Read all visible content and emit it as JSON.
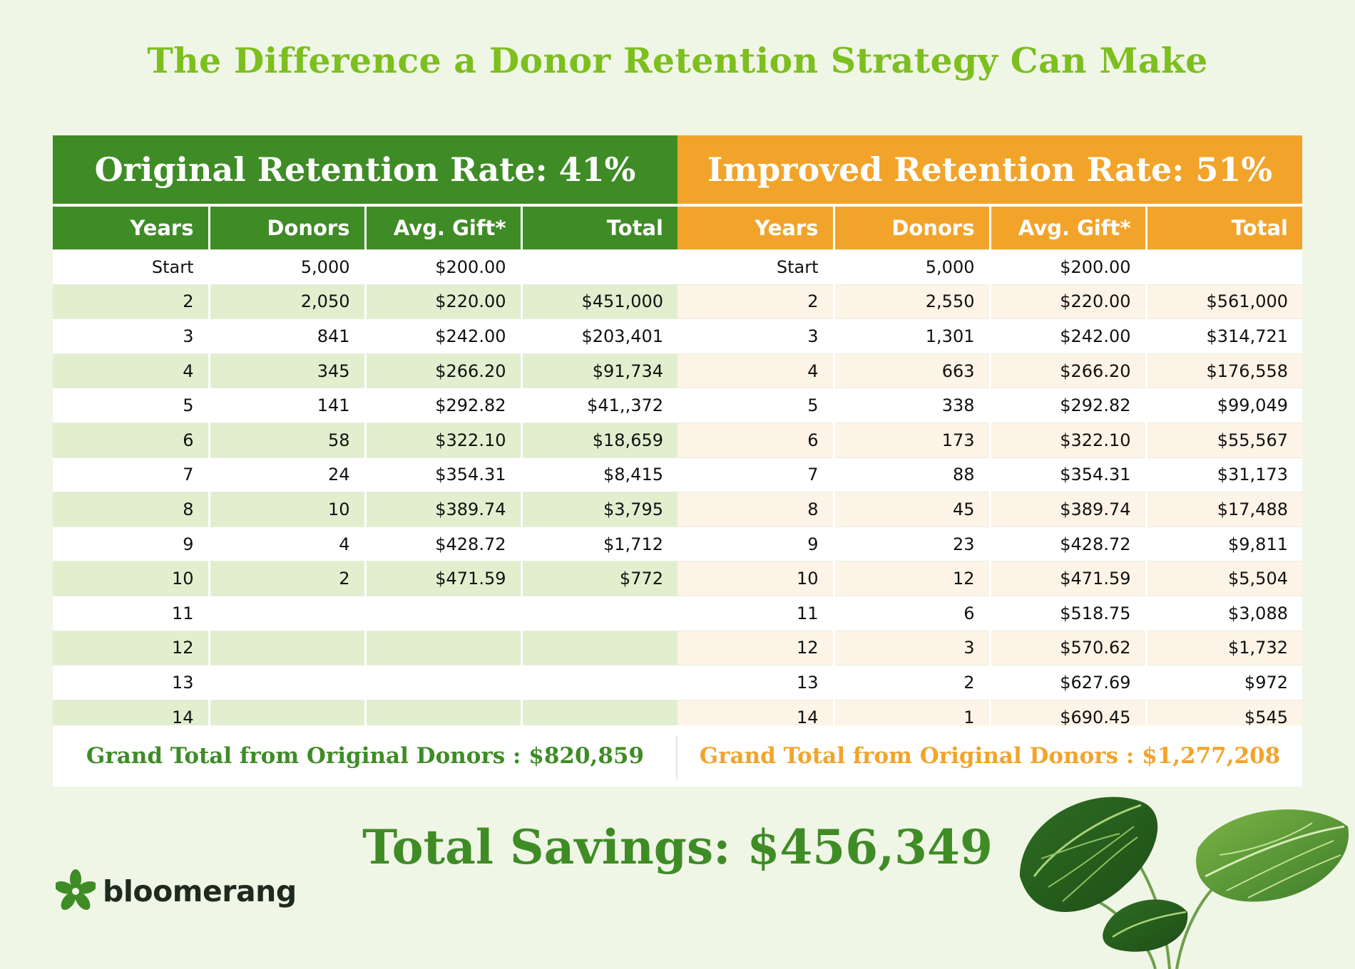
{
  "title": "The Difference a Donor Retention Strategy Can Make",
  "columns": [
    "Years",
    "Donors",
    "Avg. Gift*",
    "Total"
  ],
  "original": {
    "heading": "Original Retention Rate: 41%",
    "rows": [
      [
        "Start",
        "5,000",
        "$200.00",
        ""
      ],
      [
        "2",
        "2,050",
        "$220.00",
        "$451,000"
      ],
      [
        "3",
        "841",
        "$242.00",
        "$203,401"
      ],
      [
        "4",
        "345",
        "$266.20",
        "$91,734"
      ],
      [
        "5",
        "141",
        "$292.82",
        "$41,,372"
      ],
      [
        "6",
        "58",
        "$322.10",
        "$18,659"
      ],
      [
        "7",
        "24",
        "$354.31",
        "$8,415"
      ],
      [
        "8",
        "10",
        "$389.74",
        "$3,795"
      ],
      [
        "9",
        "4",
        "$428.72",
        "$1,712"
      ],
      [
        "10",
        "2",
        "$471.59",
        "$772"
      ],
      [
        "11",
        "",
        "",
        ""
      ],
      [
        "12",
        "",
        "",
        ""
      ],
      [
        "13",
        "",
        "",
        ""
      ],
      [
        "14",
        "",
        "",
        ""
      ]
    ],
    "grand_total": "Grand Total from Original Donors : $820,859"
  },
  "improved": {
    "heading": "Improved Retention Rate: 51%",
    "rows": [
      [
        "Start",
        "5,000",
        "$200.00",
        ""
      ],
      [
        "2",
        "2,550",
        "$220.00",
        "$561,000"
      ],
      [
        "3",
        "1,301",
        "$242.00",
        "$314,721"
      ],
      [
        "4",
        "663",
        "$266.20",
        "$176,558"
      ],
      [
        "5",
        "338",
        "$292.82",
        "$99,049"
      ],
      [
        "6",
        "173",
        "$322.10",
        "$55,567"
      ],
      [
        "7",
        "88",
        "$354.31",
        "$31,173"
      ],
      [
        "8",
        "45",
        "$389.74",
        "$17,488"
      ],
      [
        "9",
        "23",
        "$428.72",
        "$9,811"
      ],
      [
        "10",
        "12",
        "$471.59",
        "$5,504"
      ],
      [
        "11",
        "6",
        "$518.75",
        "$3,088"
      ],
      [
        "12",
        "3",
        "$570.62",
        "$1,732"
      ],
      [
        "13",
        "2",
        "$627.69",
        "$972"
      ],
      [
        "14",
        "1",
        "$690.45",
        "$545"
      ]
    ],
    "grand_total": "Grand Total from Original Donors : $1,277,208"
  },
  "savings": "Total Savings: $456,349",
  "brand": "bloomerang",
  "colors": {
    "background": "#f0f6e6",
    "title_green": "#7cbf1e",
    "dark_green": "#3f8c26",
    "orange": "#f2a42a",
    "green_stripe": "#e1efcf",
    "orange_stripe": "#fdf3e6"
  },
  "icons": [
    "bloomerang-logo-icon",
    "plant-leaves-decoration"
  ]
}
